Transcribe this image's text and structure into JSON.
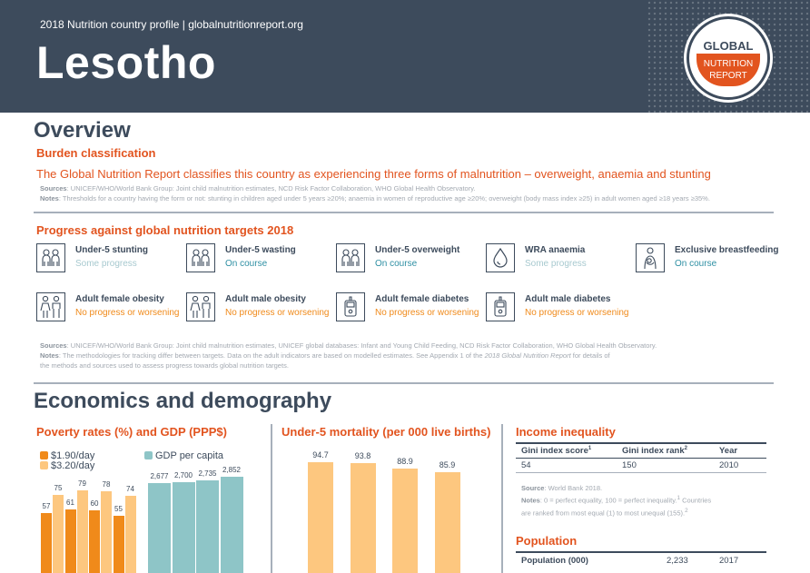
{
  "header": {
    "subtitle": "2018 Nutrition country profile  |  globalnutritionreport.org",
    "country": "Lesotho",
    "logo_line1": "GLOBAL",
    "logo_line2": "NUTRITION",
    "logo_line3": "REPORT"
  },
  "overview": {
    "title": "Overview",
    "burden_title": "Burden classification",
    "burden_text": "The Global Nutrition Report classifies this country as experiencing three forms of malnutrition – overweight, anaemia and stunting",
    "sources_label": "Sources",
    "sources_text": ": UNICEF/WHO/World Bank Group: Joint child malnutrition estimates, NCD Risk Factor Collaboration, WHO Global Health Observatory.",
    "notes_label": "Notes",
    "notes_text": ": Thresholds for a country having the form or not: stunting in children aged under 5 years ≥20%; anaemia in women of reproductive age ≥20%; overweight (body mass index ≥25) in adult women aged ≥18 years ≥35%.",
    "progress_title": "Progress against global nutrition targets 2018",
    "targets": [
      {
        "name": "Under-5 stunting",
        "status": "Some progress",
        "icon": "child-pair-icon"
      },
      {
        "name": "Under-5 wasting",
        "status": "On course",
        "icon": "child-pair-icon"
      },
      {
        "name": "Under-5 overweight",
        "status": "On course",
        "icon": "child-pair-icon"
      },
      {
        "name": "WRA anaemia",
        "status": "Some progress",
        "icon": "blood-drop-icon"
      },
      {
        "name": "Exclusive breastfeeding",
        "status": "On course",
        "icon": "mother-baby-icon"
      },
      {
        "name": "Adult female obesity",
        "status": "No progress or worsening",
        "icon": "adult-pair-icon"
      },
      {
        "name": "Adult male obesity",
        "status": "No progress or worsening",
        "icon": "adult-pair-icon"
      },
      {
        "name": "Adult female diabetes",
        "status": "No progress or worsening",
        "icon": "glucometer-icon"
      },
      {
        "name": "Adult male diabetes",
        "status": "No progress or worsening",
        "icon": "glucometer-icon"
      }
    ],
    "status_colors": {
      "Some progress": "#a7c9cf",
      "On course": "#2e8fa3",
      "No progress or worsening": "#f08a1a"
    },
    "sources2_label": "Sources",
    "sources2_text": ": UNICEF/WHO/World Bank Group: Joint child malnutrition estimates, UNICEF global databases: Infant and Young Child Feeding, NCD Risk Factor Collaboration, WHO Global Health Observatory.",
    "notes2_label": "Notes",
    "notes2_text1": ": The methodologies for tracking differ between targets. Data on the adult indicators are based on modelled estimates. See Appendix 1 of the ",
    "notes2_italic": "2018 Global Nutrition Report",
    "notes2_text2": " for details of",
    "notes2_line3": "the methods and sources used to assess progress towards global nutrition targets."
  },
  "econ": {
    "title": "Economics and demography",
    "poverty_title": "Poverty rates (%) and GDP (PPP$)",
    "mortality_title": "Under-5 mortality (per 000 live births)",
    "income_title": "Income inequality",
    "income_headers": [
      "Gini index score",
      "Gini index rank",
      "Year"
    ],
    "income_sup": [
      "1",
      "2",
      ""
    ],
    "income_row": [
      "54",
      "150",
      "2010"
    ],
    "income_source_label": "Source",
    "income_source_text": ": World Bank 2018.",
    "income_notes_label": "Notes",
    "income_notes_text": ": 0 = perfect equality, 100 = perfect inequality.",
    "income_notes_sup1": "1",
    "income_notes_text2": " Countries",
    "income_notes_line2": "are ranked from most equal (1) to most unequal (155).",
    "income_notes_sup2": "2",
    "population_title": "Population",
    "population_label": "Population (000)",
    "population_value": "2,233",
    "population_year": "2017"
  },
  "chart_data": [
    {
      "type": "bar",
      "name": "poverty",
      "series": [
        {
          "name": "$1.90/day",
          "values": [
            57,
            61,
            60,
            55
          ],
          "color": "#f08a1a"
        },
        {
          "name": "$3.20/day",
          "values": [
            75,
            79,
            78,
            74
          ],
          "color": "#fdc77f"
        }
      ],
      "values_shown": [
        "57",
        "75",
        "61",
        "79",
        "60",
        "78",
        "55",
        "74"
      ]
    },
    {
      "type": "bar",
      "name": "gdp",
      "series": [
        {
          "name": "GDP per capita",
          "values": [
            2677,
            2700,
            2735,
            2852
          ],
          "color": "#8ec5c7"
        }
      ],
      "labels": [
        "2,677",
        "2,700",
        "2,735",
        "2,852"
      ]
    },
    {
      "type": "bar",
      "name": "mortality",
      "values": [
        94.7,
        93.8,
        88.9,
        85.9
      ],
      "labels": [
        "94.7",
        "93.8",
        "88.9",
        "85.9"
      ],
      "color": "#fdc77f"
    }
  ]
}
